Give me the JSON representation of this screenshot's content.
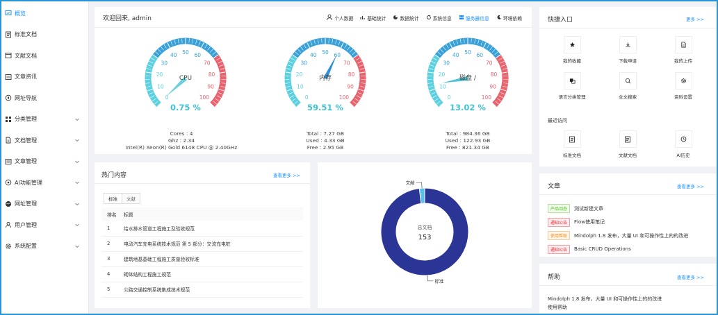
{
  "sidebar": {
    "items": [
      {
        "label": "概览",
        "icon": "dashboard-icon",
        "active": true,
        "has_children": false
      },
      {
        "label": "标准文档",
        "icon": "document-icon",
        "active": false,
        "has_children": false
      },
      {
        "label": "文献文档",
        "icon": "book-icon",
        "active": false,
        "has_children": false
      },
      {
        "label": "文章资讯",
        "icon": "article-icon",
        "active": false,
        "has_children": false
      },
      {
        "label": "网址导航",
        "icon": "compass-icon",
        "active": false,
        "has_children": false
      },
      {
        "label": "分类管理",
        "icon": "grid-icon",
        "active": false,
        "has_children": true
      },
      {
        "label": "文档管理",
        "icon": "file-icon",
        "active": false,
        "has_children": true
      },
      {
        "label": "文章管理",
        "icon": "article-icon",
        "active": false,
        "has_children": true
      },
      {
        "label": "AI功能管理",
        "icon": "ai-icon",
        "active": false,
        "has_children": true
      },
      {
        "label": "网址管理",
        "icon": "globe-icon",
        "active": false,
        "has_children": true
      },
      {
        "label": "用户管理",
        "icon": "user-icon",
        "active": false,
        "has_children": true
      },
      {
        "label": "系统配置",
        "icon": "gear-icon",
        "active": false,
        "has_children": true
      }
    ]
  },
  "sysinfo": {
    "welcome": "欢迎回来, admin",
    "tabs": [
      {
        "label": "个人数据",
        "icon": "user-icon",
        "active": false
      },
      {
        "label": "基础统计",
        "icon": "bar-chart-icon",
        "active": false
      },
      {
        "label": "数据统计",
        "icon": "pie-chart-icon",
        "active": false
      },
      {
        "label": "系统信息",
        "icon": "refresh-icon",
        "active": false
      },
      {
        "label": "服务器信息",
        "icon": "server-icon",
        "active": true
      },
      {
        "label": "环境依赖",
        "icon": "moon-icon",
        "active": false
      }
    ],
    "gauges": [
      {
        "name": "CPU",
        "value": 0.75,
        "percent_text": "0.75 %",
        "stats": [
          "Cores : 4",
          "Ghz : 2.34",
          "Intel(R) Xeon(R) Gold 6148 CPU @ 2.40GHz"
        ]
      },
      {
        "name": "内存",
        "value": 59.51,
        "percent_text": "59.51 %",
        "stats": [
          "Total : 7.27 GB",
          "Used : 4.33 GB",
          "Free : 2.95 GB"
        ]
      },
      {
        "name": "磁盘 /",
        "value": 13.02,
        "percent_text": "13.02 %",
        "stats": [
          "Total : 984.36 GB",
          "Used : 122.93 GB",
          "Free : 821.34 GB"
        ]
      }
    ],
    "gauge_ticks": [
      "0",
      "10",
      "20",
      "30",
      "40",
      "50",
      "60",
      "70",
      "80",
      "90",
      "100"
    ],
    "gauge_colors": {
      "low": "#5cd0df",
      "mid": "#3aa0d8",
      "high": "#e8636e",
      "pointer_cpu": "#6ad1dc",
      "pointer_mem": "#2f8fd6",
      "pointer_disk": "#4cc6d4"
    }
  },
  "hot": {
    "title": "热门内容",
    "more": "查看更多 >>",
    "tabs": [
      {
        "label": "标准",
        "active": true
      },
      {
        "label": "文献",
        "active": false
      }
    ],
    "columns": [
      "排名",
      "标题"
    ],
    "rows": [
      {
        "rank": "1",
        "title": "给水排水管道工程施工及验收规范"
      },
      {
        "rank": "2",
        "title": "电动汽车充电系统技术规范 第 5 部分：交流充电桩"
      },
      {
        "rank": "3",
        "title": "建筑地基基础工程施工质量验收标准"
      },
      {
        "rank": "4",
        "title": "砌体结构工程施工规范"
      },
      {
        "rank": "5",
        "title": "公路交通控制系统集成技术规范"
      }
    ]
  },
  "chart_data": {
    "type": "pie",
    "center_label": "总文档",
    "total": "153",
    "slices": [
      {
        "name": "标准",
        "value": 150,
        "color": "#2b3596"
      },
      {
        "name": "文献",
        "value": 3,
        "color": "#5bc0f0"
      }
    ]
  },
  "quick": {
    "title": "快捷入口",
    "more": "更多 >>",
    "items": [
      {
        "label": "我的收藏",
        "icon": "star-icon"
      },
      {
        "label": "下载申请",
        "icon": "download-icon"
      },
      {
        "label": "我的上传",
        "icon": "upload-file-icon"
      },
      {
        "label": "语言分类管理",
        "icon": "translate-icon"
      },
      {
        "label": "全文搜索",
        "icon": "search-icon"
      },
      {
        "label": "资料设置",
        "icon": "settings-icon"
      }
    ],
    "recent_title": "最近访问",
    "recent": [
      {
        "label": "标准文档",
        "icon": "document-icon"
      },
      {
        "label": "文献文档",
        "icon": "document-icon"
      },
      {
        "label": "AI历史",
        "icon": "clock-icon"
      }
    ]
  },
  "articles": {
    "title": "文章",
    "more": "查看更多 >>",
    "items": [
      {
        "tag": "产品动态",
        "tag_color": "#52c41a",
        "text": "测试新建文章"
      },
      {
        "tag": "通知公告",
        "tag_color": "#f5222d",
        "text": "Flow使用笔记"
      },
      {
        "tag": "使用帮助",
        "tag_color": "#fa8c16",
        "text": "Mindolph 1.8 发布，大量 UI 和可操作性上的的改进"
      },
      {
        "tag": "通知公告",
        "tag_color": "#f5222d",
        "text": "Basic CRUD Operations"
      }
    ]
  },
  "help": {
    "title": "帮助",
    "more": "查看更多 >>",
    "items": [
      {
        "text": "Mindolph 1.8 发布，大量 UI 和可操作性上的的改进"
      },
      {
        "text": "使用帮助"
      }
    ]
  }
}
